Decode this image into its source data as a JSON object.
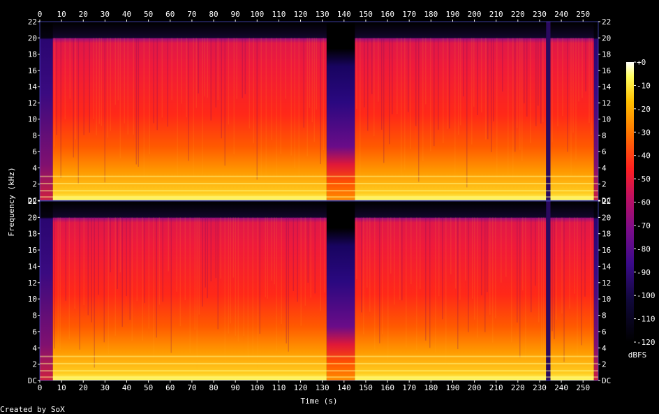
{
  "chart_data": {
    "type": "heatmap",
    "title": "",
    "xlabel": "Time (s)",
    "ylabel": "Frequency (kHz)",
    "xlim": [
      0,
      257
    ],
    "ylim": [
      0,
      22
    ],
    "x_ticks": [
      "0",
      "10",
      "20",
      "30",
      "40",
      "50",
      "60",
      "70",
      "80",
      "90",
      "100",
      "110",
      "120",
      "130",
      "140",
      "150",
      "160",
      "170",
      "180",
      "190",
      "200",
      "210",
      "220",
      "230",
      "240",
      "250"
    ],
    "x_tick_values": [
      0,
      10,
      20,
      30,
      40,
      50,
      60,
      70,
      80,
      90,
      100,
      110,
      120,
      130,
      140,
      150,
      160,
      170,
      180,
      190,
      200,
      210,
      220,
      230,
      240,
      250
    ],
    "y_ticks": [
      "DC",
      "2",
      "4",
      "6",
      "8",
      "10",
      "12",
      "14",
      "16",
      "18",
      "20",
      "22"
    ],
    "y_tick_values": [
      0,
      2,
      4,
      6,
      8,
      10,
      12,
      14,
      16,
      18,
      20,
      22
    ],
    "channels": 2,
    "colorbar": {
      "label": "dBFS",
      "ticks": [
        "+0",
        "-10",
        "-20",
        "-30",
        "-40",
        "-50",
        "-60",
        "-70",
        "-80",
        "-90",
        "-100",
        "-110",
        "-120"
      ],
      "tick_values": [
        0,
        -10,
        -20,
        -30,
        -40,
        -50,
        -60,
        -70,
        -80,
        -90,
        -100,
        -110,
        -120
      ],
      "range": [
        -120,
        0
      ]
    },
    "content_cutoff_khz": 20,
    "segments": [
      {
        "start": 0,
        "end": 6,
        "level": "quiet"
      },
      {
        "start": 6,
        "end": 132,
        "level": "loud"
      },
      {
        "start": 132,
        "end": 145,
        "level": "low-pass"
      },
      {
        "start": 145,
        "end": 233,
        "level": "loud"
      },
      {
        "start": 233,
        "end": 235,
        "level": "gap"
      },
      {
        "start": 235,
        "end": 255,
        "level": "loud"
      },
      {
        "start": 255,
        "end": 257,
        "level": "quiet"
      }
    ]
  },
  "footer": {
    "credit": "Created by SoX"
  }
}
